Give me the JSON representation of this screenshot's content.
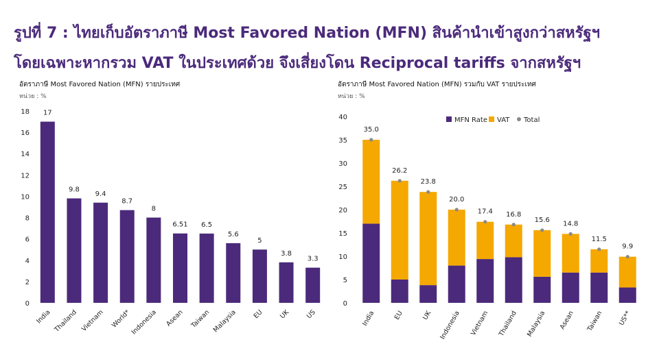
{
  "header": {
    "line1": "รูปที่ 7 : ไทยเก็บอัตราภาษี Most Favored Nation (MFN) สินค้านำเข้าสูงกว่าสหรัฐฯ",
    "line2": "โดยเฉพาะหากรวม VAT ในประเทศด้วย จึงเสี่ยงโดน Reciprocal tariffs จากสหรัฐฯ"
  },
  "colors": {
    "title": "#4b2a7b",
    "mfn": "#4b2a7b",
    "vat": "#f5a800",
    "total": "#8a8a8a"
  },
  "chart_data": [
    {
      "type": "bar",
      "title": "อัตราภาษี Most Favored Nation (MFN) รายประเทศ",
      "unit": "หน่วย : %",
      "categories": [
        "India",
        "Thailand",
        "Vietnam",
        "World*",
        "Indonesia",
        "Asean",
        "Taiwan",
        "Malaysia",
        "EU",
        "UK",
        "US"
      ],
      "values": [
        17,
        9.8,
        9.4,
        8.7,
        8,
        6.51,
        6.5,
        5.6,
        5,
        3.8,
        3.3
      ],
      "labels": [
        "17",
        "9.8",
        "9.4",
        "8.7",
        "8",
        "6.51",
        "6.5",
        "5.6",
        "5",
        "3.8",
        "3.3"
      ],
      "ylim": [
        0,
        18
      ],
      "yticks": [
        "0",
        "2",
        "4",
        "6",
        "8",
        "10",
        "12",
        "14",
        "16",
        "18"
      ],
      "xlabel": "",
      "ylabel": ""
    },
    {
      "type": "bar",
      "stacked": true,
      "title": "อัตราภาษี Most Favored Nation (MFN) รวมกับ VAT รายประเทศ",
      "unit": "หน่วย : %",
      "categories": [
        "India",
        "EU",
        "UK",
        "Indonesia",
        "Vietnam",
        "Thailand",
        "Malaysia",
        "Asean",
        "Taiwan",
        "US**"
      ],
      "series": [
        {
          "name": "MFN Rate",
          "values": [
            17,
            5,
            3.8,
            8,
            9.4,
            9.8,
            5.6,
            6.5,
            6.5,
            3.3
          ]
        },
        {
          "name": "VAT",
          "values": [
            18,
            21.2,
            20,
            12,
            8,
            7,
            10,
            8.3,
            5,
            6.6
          ]
        }
      ],
      "total_name": "Total",
      "totals": [
        35.0,
        26.2,
        23.8,
        20.0,
        17.4,
        16.8,
        15.6,
        14.8,
        11.5,
        9.9
      ],
      "total_labels": [
        "35.0",
        "26.2",
        "23.8",
        "20.0",
        "17.4",
        "16.8",
        "15.6",
        "14.8",
        "11.5",
        "9.9"
      ],
      "ylim": [
        0,
        40
      ],
      "yticks": [
        "0",
        "5",
        "10",
        "15",
        "20",
        "25",
        "30",
        "35",
        "40"
      ],
      "xlabel": "",
      "ylabel": ""
    }
  ]
}
